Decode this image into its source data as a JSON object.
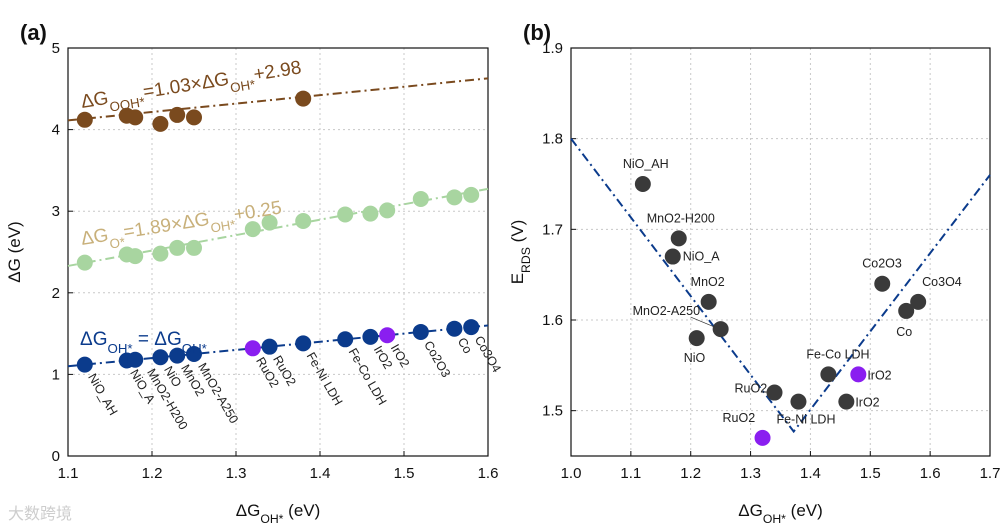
{
  "colors": {
    "ooh": "#7a4a1e",
    "o": "#a8d5a0",
    "o_text": "#c8b07a",
    "oh": "#0b3b8c",
    "purple": "#8a1ef0",
    "gray": "#3a3a3a",
    "line": "#0b3b8c"
  },
  "watermark": "大数跨境",
  "chart_data": [
    {
      "panel": "(a)",
      "type": "scatter",
      "xlabel": "ΔG_OH* (eV)",
      "ylabel": "ΔG (eV)",
      "xlim": [
        1.1,
        1.6
      ],
      "ylim": [
        0,
        5
      ],
      "xticks": [
        "1.1",
        "1.2",
        "1.3",
        "1.4",
        "1.5",
        "1.6"
      ],
      "yticks": [
        "0",
        "1",
        "2",
        "3",
        "4",
        "5"
      ],
      "grid": true,
      "materials": [
        "NiO_AH",
        "NiO_A",
        "MnO2-H200",
        "NiO",
        "MnO2",
        "MnO2-A250",
        "RuO2",
        "RuO2",
        "Fe-Ni LDH",
        "Fe-Co LDH",
        "IrO2",
        "IrO2",
        "Co2O3",
        "Co",
        "Co3O4"
      ],
      "x": [
        1.12,
        1.17,
        1.18,
        1.21,
        1.23,
        1.25,
        1.32,
        1.34,
        1.38,
        1.43,
        1.46,
        1.48,
        1.52,
        1.56,
        1.58
      ],
      "highlight": [
        false,
        false,
        false,
        false,
        false,
        false,
        true,
        false,
        false,
        false,
        false,
        true,
        false,
        false,
        false
      ],
      "series": [
        {
          "name": "OOH*",
          "equation": [
            [
              "ΔG",
              ""
            ],
            [
              "",
              "OOH*"
            ],
            [
              "=1.03×ΔG",
              ""
            ],
            [
              "",
              "OH*"
            ],
            [
              "+2.98",
              ""
            ]
          ],
          "slope": 1.03,
          "intercept": 2.98,
          "x": [
            1.12,
            1.17,
            1.18,
            1.21,
            1.23,
            1.25,
            1.38
          ],
          "y": [
            4.12,
            4.17,
            4.15,
            4.07,
            4.18,
            4.15,
            4.38
          ]
        },
        {
          "name": "O*",
          "equation": [
            [
              "ΔG",
              ""
            ],
            [
              "",
              "O*"
            ],
            [
              "=1.89×ΔG",
              ""
            ],
            [
              "",
              "OH*"
            ],
            [
              "+0.25",
              ""
            ]
          ],
          "slope": 1.89,
          "intercept": 0.25,
          "x": [
            1.12,
            1.17,
            1.18,
            1.21,
            1.23,
            1.25,
            1.32,
            1.34,
            1.38,
            1.43,
            1.46,
            1.48,
            1.52,
            1.56,
            1.58
          ],
          "y": [
            2.37,
            2.47,
            2.45,
            2.48,
            2.55,
            2.55,
            2.78,
            2.86,
            2.88,
            2.96,
            2.97,
            3.01,
            3.15,
            3.17,
            3.2
          ]
        },
        {
          "name": "OH*",
          "equation": [
            [
              "ΔG",
              ""
            ],
            [
              "",
              "OH*"
            ],
            [
              " = ΔG",
              ""
            ],
            [
              "",
              "OH*"
            ]
          ],
          "slope": 1,
          "intercept": 0,
          "x": [
            1.12,
            1.17,
            1.18,
            1.21,
            1.23,
            1.25,
            1.32,
            1.34,
            1.38,
            1.43,
            1.46,
            1.48,
            1.52,
            1.56,
            1.58
          ],
          "y": [
            1.12,
            1.17,
            1.18,
            1.21,
            1.23,
            1.25,
            1.32,
            1.34,
            1.38,
            1.43,
            1.46,
            1.48,
            1.52,
            1.56,
            1.58
          ]
        }
      ]
    },
    {
      "panel": "(b)",
      "type": "scatter",
      "xlabel": "ΔG_OH* (eV)",
      "ylabel": "E_RDS (V)",
      "xlim": [
        1.0,
        1.7
      ],
      "ylim": [
        1.45,
        1.9
      ],
      "xticks": [
        "1.0",
        "1.1",
        "1.2",
        "1.3",
        "1.4",
        "1.5",
        "1.6",
        "1.7"
      ],
      "yticks": [
        "1.5",
        "1.6",
        "1.7",
        "1.8",
        "1.9"
      ],
      "grid": true,
      "points": [
        {
          "label": "NiO_AH",
          "x": 1.12,
          "y": 1.75,
          "hl": false
        },
        {
          "label": "MnO2-H200",
          "x": 1.18,
          "y": 1.69,
          "hl": false
        },
        {
          "label": "NiO_A",
          "x": 1.17,
          "y": 1.67,
          "hl": false
        },
        {
          "label": "MnO2",
          "x": 1.23,
          "y": 1.62,
          "hl": false
        },
        {
          "label": "MnO2-A250",
          "x": 1.25,
          "y": 1.59,
          "hl": false
        },
        {
          "label": "NiO",
          "x": 1.21,
          "y": 1.58,
          "hl": false
        },
        {
          "label": "RuO2",
          "x": 1.34,
          "y": 1.52,
          "hl": false
        },
        {
          "label": "RuO2",
          "x": 1.32,
          "y": 1.47,
          "hl": true
        },
        {
          "label": "Fe-Ni LDH",
          "x": 1.38,
          "y": 1.51,
          "hl": false
        },
        {
          "label": "Fe-Co LDH",
          "x": 1.43,
          "y": 1.54,
          "hl": false
        },
        {
          "label": "IrO2",
          "x": 1.48,
          "y": 1.54,
          "hl": true
        },
        {
          "label": "IrO2",
          "x": 1.46,
          "y": 1.51,
          "hl": false
        },
        {
          "label": "Co2O3",
          "x": 1.52,
          "y": 1.64,
          "hl": false
        },
        {
          "label": "Co",
          "x": 1.56,
          "y": 1.61,
          "hl": false
        },
        {
          "label": "Co3O4",
          "x": 1.58,
          "y": 1.62,
          "hl": false
        }
      ],
      "volcano": [
        [
          1.0,
          1.8
        ],
        [
          1.372,
          1.477
        ],
        [
          1.7,
          1.76
        ]
      ]
    }
  ]
}
